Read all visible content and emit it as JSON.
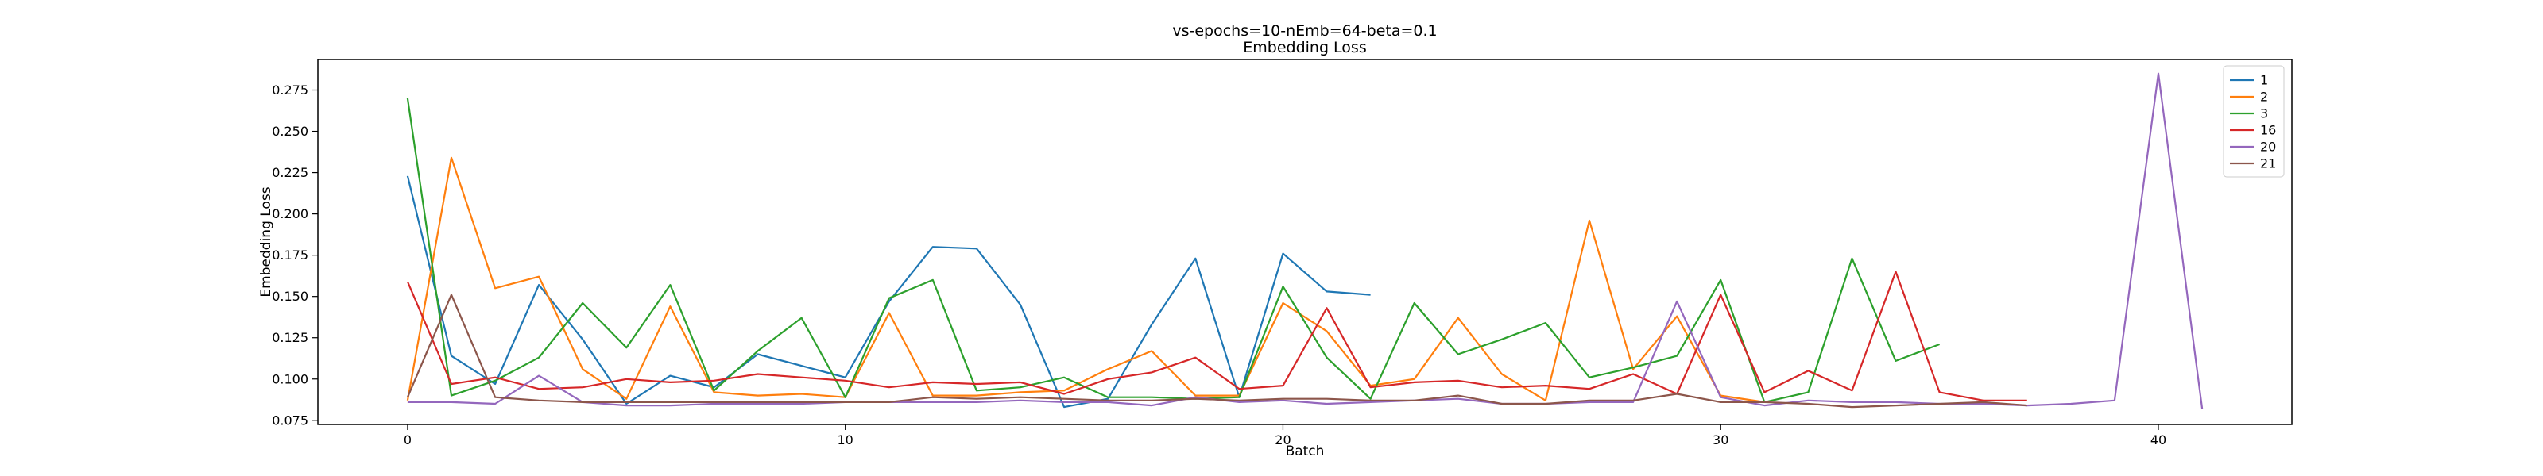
{
  "chart_data": {
    "type": "line",
    "title": "vs-epochs=10-nEmb=64-beta=0.1",
    "subtitle": "Embedding Loss",
    "xlabel": "Batch",
    "ylabel": "Embedding Loss",
    "xlim": [
      -2.05,
      43.05
    ],
    "ylim": [
      0.0725,
      0.2935
    ],
    "xticks": [
      0,
      10,
      20,
      30,
      40
    ],
    "yticks": [
      0.075,
      0.1,
      0.125,
      0.15,
      0.175,
      0.2,
      0.225,
      0.25,
      0.275
    ],
    "ytick_labels": [
      "0.075",
      "0.100",
      "0.125",
      "0.150",
      "0.175",
      "0.200",
      "0.225",
      "0.250",
      "0.275"
    ],
    "grid": false,
    "legend_position": "top-right",
    "series": [
      {
        "name": "1",
        "color": "#1f77b4",
        "x": [
          0,
          1,
          2,
          3,
          4,
          5,
          6,
          7,
          8,
          9,
          10,
          11,
          12,
          13,
          14,
          15,
          16,
          17,
          18,
          19,
          20,
          21,
          22
        ],
        "values": [
          0.223,
          0.114,
          0.097,
          0.157,
          0.124,
          0.085,
          0.102,
          0.095,
          0.115,
          0.108,
          0.101,
          0.147,
          0.18,
          0.179,
          0.145,
          0.083,
          0.088,
          0.133,
          0.173,
          0.089,
          0.176,
          0.153,
          0.151
        ]
      },
      {
        "name": "2",
        "color": "#ff7f0e",
        "x": [
          0,
          1,
          2,
          3,
          4,
          5,
          6,
          7,
          8,
          9,
          10,
          11,
          12,
          13,
          14,
          15,
          16,
          17,
          18,
          19,
          20,
          21,
          22,
          23,
          24,
          25,
          26,
          27,
          28,
          29,
          30,
          31
        ],
        "values": [
          0.087,
          0.234,
          0.155,
          0.162,
          0.106,
          0.088,
          0.144,
          0.092,
          0.09,
          0.091,
          0.089,
          0.14,
          0.09,
          0.09,
          0.092,
          0.093,
          0.106,
          0.117,
          0.09,
          0.09,
          0.146,
          0.129,
          0.096,
          0.1,
          0.137,
          0.103,
          0.087,
          0.196,
          0.106,
          0.138,
          0.09,
          0.086
        ]
      },
      {
        "name": "3",
        "color": "#2ca02c",
        "x": [
          0,
          1,
          2,
          3,
          4,
          5,
          6,
          7,
          8,
          9,
          10,
          11,
          12,
          13,
          14,
          15,
          16,
          17,
          18,
          19,
          20,
          21,
          22,
          23,
          24,
          25,
          26,
          27,
          28,
          29,
          30,
          31,
          32,
          33,
          34,
          35
        ],
        "values": [
          0.27,
          0.09,
          0.099,
          0.113,
          0.146,
          0.119,
          0.157,
          0.093,
          0.117,
          0.137,
          0.089,
          0.149,
          0.16,
          0.093,
          0.095,
          0.101,
          0.089,
          0.089,
          0.088,
          0.089,
          0.156,
          0.113,
          0.088,
          0.146,
          0.115,
          0.124,
          0.134,
          0.101,
          0.107,
          0.114,
          0.16,
          0.086,
          0.092,
          0.173,
          0.111,
          0.121
        ]
      },
      {
        "name": "16",
        "color": "#d62728",
        "x": [
          0,
          1,
          2,
          3,
          4,
          5,
          6,
          7,
          8,
          9,
          10,
          11,
          12,
          13,
          14,
          15,
          16,
          17,
          18,
          19,
          20,
          21,
          22,
          23,
          24,
          25,
          26,
          27,
          28,
          29,
          30,
          31,
          32,
          33,
          34,
          35,
          36,
          37
        ],
        "values": [
          0.159,
          0.097,
          0.101,
          0.094,
          0.095,
          0.1,
          0.098,
          0.099,
          0.103,
          0.101,
          0.099,
          0.095,
          0.098,
          0.097,
          0.098,
          0.091,
          0.1,
          0.104,
          0.113,
          0.094,
          0.096,
          0.143,
          0.095,
          0.098,
          0.099,
          0.095,
          0.096,
          0.094,
          0.103,
          0.091,
          0.151,
          0.092,
          0.105,
          0.093,
          0.165,
          0.092,
          0.087,
          0.087
        ]
      },
      {
        "name": "20",
        "color": "#9467bd",
        "x": [
          0,
          1,
          2,
          3,
          4,
          5,
          6,
          7,
          8,
          9,
          10,
          11,
          12,
          13,
          14,
          15,
          16,
          17,
          18,
          19,
          20,
          21,
          22,
          23,
          24,
          25,
          26,
          27,
          28,
          29,
          30,
          31,
          32,
          33,
          34,
          35,
          36,
          37,
          38,
          39,
          40,
          41
        ],
        "values": [
          0.086,
          0.086,
          0.085,
          0.102,
          0.086,
          0.084,
          0.084,
          0.085,
          0.085,
          0.085,
          0.086,
          0.086,
          0.086,
          0.086,
          0.087,
          0.086,
          0.086,
          0.084,
          0.089,
          0.086,
          0.087,
          0.085,
          0.086,
          0.087,
          0.088,
          0.085,
          0.085,
          0.086,
          0.086,
          0.147,
          0.089,
          0.084,
          0.087,
          0.086,
          0.086,
          0.085,
          0.085,
          0.084,
          0.085,
          0.087,
          0.285,
          0.082
        ]
      },
      {
        "name": "21",
        "color": "#8c564b",
        "x": [
          0,
          1,
          2,
          3,
          4,
          5,
          6,
          7,
          8,
          9,
          10,
          11,
          12,
          13,
          14,
          15,
          16,
          17,
          18,
          19,
          20,
          21,
          22,
          23,
          24,
          25,
          26,
          27,
          28,
          29,
          30,
          31,
          32,
          33,
          34,
          35,
          36,
          37
        ],
        "values": [
          0.089,
          0.151,
          0.089,
          0.087,
          0.086,
          0.086,
          0.086,
          0.086,
          0.086,
          0.086,
          0.086,
          0.086,
          0.089,
          0.088,
          0.089,
          0.088,
          0.087,
          0.087,
          0.088,
          0.087,
          0.088,
          0.088,
          0.087,
          0.087,
          0.09,
          0.085,
          0.085,
          0.087,
          0.087,
          0.091,
          0.086,
          0.086,
          0.085,
          0.083,
          0.084,
          0.085,
          0.086,
          0.084
        ]
      }
    ]
  }
}
